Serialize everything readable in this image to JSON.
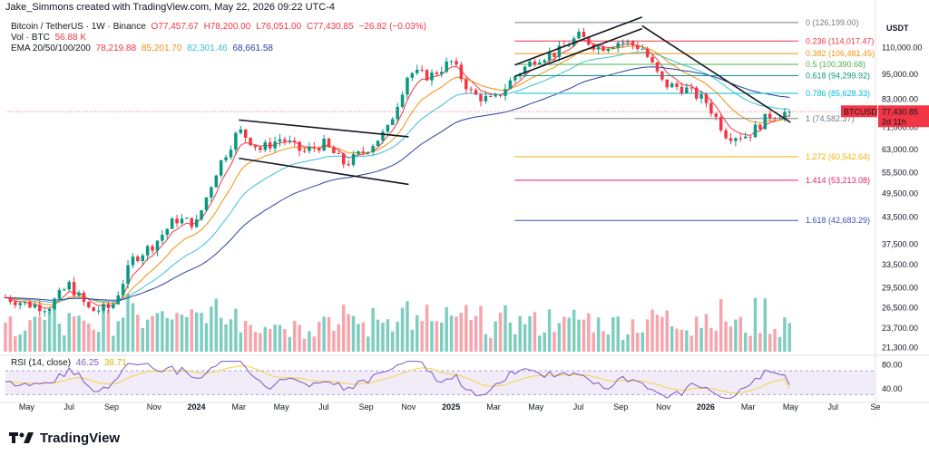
{
  "header": {
    "text": "Jake_Simmons created with TradingView.com, May 22, 2026 09:22 UTC-4"
  },
  "legend": {
    "symbol": "Bitcoin / TetherUS · 1W · Binance",
    "open": "O77,457.67",
    "high": "H78,200.00",
    "low": "L76,051.00",
    "close": "C77,430.85",
    "change": "−26.82 (−0.03%)",
    "vol_label": "Vol · BTC",
    "vol_value": "56.88 K",
    "ema_label": "EMA 20/50/100/200",
    "ema20": "78,219.88",
    "ema50": "85,201.70",
    "ema100": "82,301.46",
    "ema200": "68,661.58"
  },
  "rsi": {
    "label": "RSI (14, close)",
    "value": "46.25",
    "ma_value": "38.71"
  },
  "price_axis": {
    "currency": "USDT",
    "ticks": [
      "110,000.00",
      "95,000.00",
      "83,000.00",
      "71,000.00",
      "63,000.00",
      "55,500.00",
      "49,500.00",
      "43,500.00",
      "37,500.00",
      "33,500.00",
      "29,500.00",
      "26,500.00",
      "23,700.00",
      "21,300.00"
    ],
    "last_symbol": "BTCUSDT",
    "last_price": "77,430.85",
    "countdown": "2d 11h"
  },
  "rsi_axis": {
    "ticks": [
      "80.00",
      "40.00"
    ]
  },
  "time_axis": {
    "labels": [
      "May",
      "Jul",
      "Sep",
      "Nov",
      "2024",
      "Mar",
      "May",
      "Jul",
      "Sep",
      "Nov",
      "2025",
      "Mar",
      "May",
      "Jul",
      "Sep",
      "Nov",
      "2026",
      "Mar",
      "May",
      "Jul",
      "Se"
    ]
  },
  "fib_levels": [
    {
      "label": "0 (126,199.00)",
      "value": 126199,
      "color": "#787b86"
    },
    {
      "label": "0.236 (114,017.47)",
      "value": 114017.47,
      "color": "#f23645"
    },
    {
      "label": "0.382 (106,481.45)",
      "value": 106481.45,
      "color": "#f0910c"
    },
    {
      "label": "0.5 (100,390.68)",
      "value": 100390.68,
      "color": "#4caf50"
    },
    {
      "label": "0.618 (94,299.92)",
      "value": 94299.92,
      "color": "#089981"
    },
    {
      "label": "0.786 (85,628.33)",
      "value": 85628.33,
      "color": "#00bcd4"
    },
    {
      "label": "1 (74,582.37)",
      "value": 74582.37,
      "color": "#787b86"
    },
    {
      "label": "1.272 (60,542.64)",
      "value": 60542.64,
      "color": "#f0b400"
    },
    {
      "label": "1.414 (53,213.08)",
      "value": 53213.08,
      "color": "#e91e63"
    },
    {
      "label": "1.618 (42,683.29)",
      "value": 42683.29,
      "color": "#3f51b5"
    }
  ],
  "colors": {
    "up": "#089981",
    "down": "#f23645",
    "vol_up": "#7fcdc0",
    "vol_down": "#f6a5ad",
    "ema20": "#f23645",
    "ema50": "#f0910c",
    "ema100": "#3bc0d6",
    "ema200": "#2c3ea3",
    "rsi": "#7e57c2",
    "rsi_ma": "#f5d442"
  },
  "footer": {
    "brand": "TradingView"
  },
  "chart_data": {
    "type": "candlestick",
    "title": "Bitcoin / TetherUS · 1W · Binance",
    "price_scale": "log",
    "ylim": [
      20600,
      128000
    ],
    "x_range": [
      "2023-04",
      "2026-09"
    ],
    "price_path": [
      {
        "date": "2023-04",
        "price": 28000
      },
      {
        "date": "2023-05",
        "price": 27000
      },
      {
        "date": "2023-06",
        "price": 26500
      },
      {
        "date": "2023-07",
        "price": 30000
      },
      {
        "date": "2023-08",
        "price": 26000
      },
      {
        "date": "2023-09",
        "price": 26500
      },
      {
        "date": "2023-10",
        "price": 34500
      },
      {
        "date": "2023-11",
        "price": 37500
      },
      {
        "date": "2023-12",
        "price": 43000
      },
      {
        "date": "2024-01",
        "price": 42000
      },
      {
        "date": "2024-02",
        "price": 57000
      },
      {
        "date": "2024-03",
        "price": 70000
      },
      {
        "date": "2024-04",
        "price": 63000
      },
      {
        "date": "2024-05",
        "price": 67000
      },
      {
        "date": "2024-06",
        "price": 62000
      },
      {
        "date": "2024-07",
        "price": 65000
      },
      {
        "date": "2024-08",
        "price": 58000
      },
      {
        "date": "2024-09",
        "price": 63000
      },
      {
        "date": "2024-10",
        "price": 70000
      },
      {
        "date": "2024-11",
        "price": 96000
      },
      {
        "date": "2024-12",
        "price": 94000
      },
      {
        "date": "2025-01",
        "price": 102000
      },
      {
        "date": "2025-02",
        "price": 85000
      },
      {
        "date": "2025-03",
        "price": 82000
      },
      {
        "date": "2025-04",
        "price": 94000
      },
      {
        "date": "2025-05",
        "price": 104000
      },
      {
        "date": "2025-06",
        "price": 107000
      },
      {
        "date": "2025-07",
        "price": 117000
      },
      {
        "date": "2025-08",
        "price": 110000
      },
      {
        "date": "2025-09",
        "price": 114000
      },
      {
        "date": "2025-10",
        "price": 110000
      },
      {
        "date": "2025-11",
        "price": 90000
      },
      {
        "date": "2025-12",
        "price": 88000
      },
      {
        "date": "2026-01",
        "price": 82000
      },
      {
        "date": "2026-02",
        "price": 68000
      },
      {
        "date": "2026-03",
        "price": 68000
      },
      {
        "date": "2026-04",
        "price": 76000
      },
      {
        "date": "2026-05",
        "price": 77430.85
      }
    ],
    "ema": [
      {
        "name": "EMA 20",
        "last": 78219.88
      },
      {
        "name": "EMA 50",
        "last": 85201.7
      },
      {
        "name": "EMA 100",
        "last": 82301.46
      },
      {
        "name": "EMA 200",
        "last": 68661.58
      }
    ],
    "trendlines": [
      {
        "from": {
          "date": "2024-03",
          "price": 74000
        },
        "to": {
          "date": "2024-11",
          "price": 67500
        }
      },
      {
        "from": {
          "date": "2024-03",
          "price": 60000
        },
        "to": {
          "date": "2024-11",
          "price": 52000
        }
      },
      {
        "from": {
          "date": "2025-10",
          "price": 124000
        },
        "to": {
          "date": "2026-05",
          "price": 73000
        }
      },
      {
        "from": {
          "date": "2025-04",
          "price": 94000
        },
        "to": {
          "date": "2025-10",
          "price": 122000
        }
      },
      {
        "from": {
          "date": "2025-04",
          "price": 100000
        },
        "to": {
          "date": "2025-10",
          "price": 130000
        }
      }
    ],
    "rsi": {
      "ylim": [
        20,
        90
      ],
      "last": 46.25,
      "ma_last": 38.71,
      "band": [
        30,
        70
      ]
    },
    "volume_unit": "BTC",
    "volume_last": "56.88 K"
  }
}
